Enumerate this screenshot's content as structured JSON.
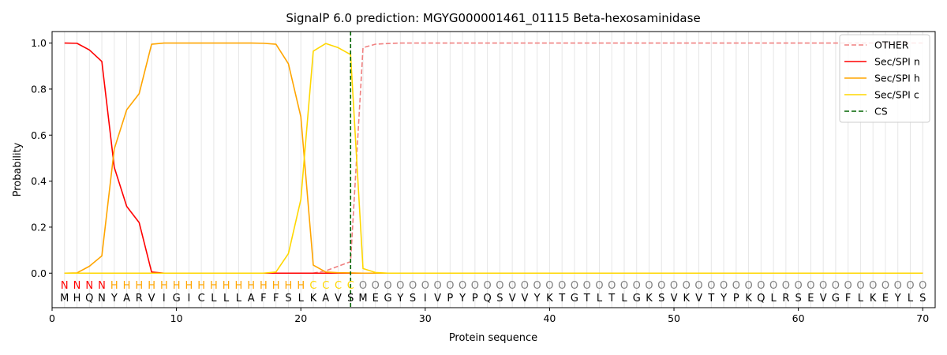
{
  "chart_data": {
    "type": "line",
    "title": "SignalP 6.0 prediction: MGYG000001461_01115 Beta-hexosaminidase",
    "xlabel": "Protein sequence",
    "ylabel": "Probability",
    "xlim": [
      0,
      71
    ],
    "ylim": [
      -0.15,
      1.05
    ],
    "xticks": [
      "0",
      "10",
      "20",
      "30",
      "40",
      "50",
      "60",
      "70"
    ],
    "yticks": [
      "0.0",
      "0.2",
      "0.4",
      "0.6",
      "0.8",
      "1.0"
    ],
    "grid": "vertical lines at every residue",
    "legend_position": "top-right",
    "sequence": [
      "M",
      "H",
      "Q",
      "N",
      "Y",
      "A",
      "R",
      "V",
      "I",
      "G",
      "I",
      "C",
      "L",
      "L",
      "L",
      "A",
      "F",
      "F",
      "S",
      "L",
      "K",
      "A",
      "V",
      "S",
      "M",
      "E",
      "G",
      "Y",
      "S",
      "I",
      "V",
      "P",
      "Y",
      "P",
      "Q",
      "S",
      "V",
      "V",
      "Y",
      "K",
      "T",
      "G",
      "T",
      "L",
      "T",
      "L",
      "G",
      "K",
      "S",
      "V",
      "K",
      "V",
      "T",
      "Y",
      "P",
      "K",
      "Q",
      "L",
      "R",
      "S",
      "E",
      "V",
      "G",
      "F",
      "L",
      "K",
      "E",
      "Y",
      "L",
      "S"
    ],
    "region_labels": [
      "N",
      "N",
      "N",
      "N",
      "H",
      "H",
      "H",
      "H",
      "H",
      "H",
      "H",
      "H",
      "H",
      "H",
      "H",
      "H",
      "H",
      "H",
      "H",
      "H",
      "C",
      "C",
      "C",
      "C",
      "O",
      "O",
      "O",
      "O",
      "O",
      "O",
      "O",
      "O",
      "O",
      "O",
      "O",
      "O",
      "O",
      "O",
      "O",
      "O",
      "O",
      "O",
      "O",
      "O",
      "O",
      "O",
      "O",
      "O",
      "O",
      "O",
      "O",
      "O",
      "O",
      "O",
      "O",
      "O",
      "O",
      "O",
      "O",
      "O",
      "O",
      "O",
      "O",
      "O",
      "O",
      "O",
      "O",
      "O",
      "O",
      "O"
    ],
    "region_colors": {
      "N": "#ff0000",
      "H": "#ffa500",
      "C": "#ffd700",
      "O": "#808080"
    },
    "cleavage_site": 24,
    "series": [
      {
        "name": "OTHER",
        "color": "#f08080",
        "dash": "dashed",
        "values": [
          0,
          0,
          0,
          0,
          0,
          0,
          0,
          0,
          0,
          0,
          0,
          0,
          0,
          0,
          0,
          0,
          0,
          0,
          0,
          0,
          0,
          0.01,
          0.03,
          0.05,
          0.98,
          0.995,
          0.998,
          1,
          1,
          1,
          1,
          1,
          1,
          1,
          1,
          1,
          1,
          1,
          1,
          1,
          1,
          1,
          1,
          1,
          1,
          1,
          1,
          1,
          1,
          1,
          1,
          1,
          1,
          1,
          1,
          1,
          1,
          1,
          1,
          1,
          1,
          1,
          1,
          1,
          1,
          1,
          1,
          1,
          1,
          1
        ]
      },
      {
        "name": "Sec/SPI n",
        "color": "#ff0000",
        "dash": "solid",
        "values": [
          1.0,
          0.999,
          0.97,
          0.92,
          0.46,
          0.29,
          0.22,
          0.005,
          0,
          0,
          0,
          0,
          0,
          0,
          0,
          0,
          0,
          0,
          0,
          0,
          0,
          0,
          0,
          0,
          0,
          0,
          0,
          0,
          0,
          0,
          0,
          0,
          0,
          0,
          0,
          0,
          0,
          0,
          0,
          0,
          0,
          0,
          0,
          0,
          0,
          0,
          0,
          0,
          0,
          0,
          0,
          0,
          0,
          0,
          0,
          0,
          0,
          0,
          0,
          0,
          0,
          0,
          0,
          0,
          0,
          0,
          0,
          0,
          0,
          0
        ]
      },
      {
        "name": "Sec/SPI h",
        "color": "#ffa500",
        "dash": "solid",
        "values": [
          0,
          0.001,
          0.03,
          0.075,
          0.54,
          0.71,
          0.78,
          0.995,
          1,
          1,
          1,
          1,
          1,
          1,
          1,
          1,
          0.999,
          0.995,
          0.91,
          0.68,
          0.035,
          0.005,
          0.002,
          0.001,
          0,
          0,
          0,
          0,
          0,
          0,
          0,
          0,
          0,
          0,
          0,
          0,
          0,
          0,
          0,
          0,
          0,
          0,
          0,
          0,
          0,
          0,
          0,
          0,
          0,
          0,
          0,
          0,
          0,
          0,
          0,
          0,
          0,
          0,
          0,
          0,
          0,
          0,
          0,
          0,
          0,
          0,
          0,
          0,
          0,
          0
        ]
      },
      {
        "name": "Sec/SPI c",
        "color": "#ffd700",
        "dash": "solid",
        "values": [
          0,
          0,
          0,
          0,
          0,
          0,
          0,
          0,
          0,
          0,
          0,
          0,
          0,
          0,
          0,
          0,
          0,
          0.005,
          0.085,
          0.32,
          0.965,
          0.998,
          0.98,
          0.95,
          0.02,
          0.003,
          0,
          0,
          0,
          0,
          0,
          0,
          0,
          0,
          0,
          0,
          0,
          0,
          0,
          0,
          0,
          0,
          0,
          0,
          0,
          0,
          0,
          0,
          0,
          0,
          0,
          0,
          0,
          0,
          0,
          0,
          0,
          0,
          0,
          0,
          0,
          0,
          0,
          0,
          0,
          0,
          0,
          0,
          0,
          0
        ]
      }
    ],
    "legend": [
      {
        "name": "OTHER",
        "color": "#f08080",
        "dash": "dashed"
      },
      {
        "name": "Sec/SPI n",
        "color": "#ff0000",
        "dash": "solid"
      },
      {
        "name": "Sec/SPI h",
        "color": "#ffa500",
        "dash": "solid"
      },
      {
        "name": "Sec/SPI c",
        "color": "#ffd700",
        "dash": "solid"
      },
      {
        "name": "CS",
        "color": "#006400",
        "dash": "dashed"
      }
    ]
  }
}
